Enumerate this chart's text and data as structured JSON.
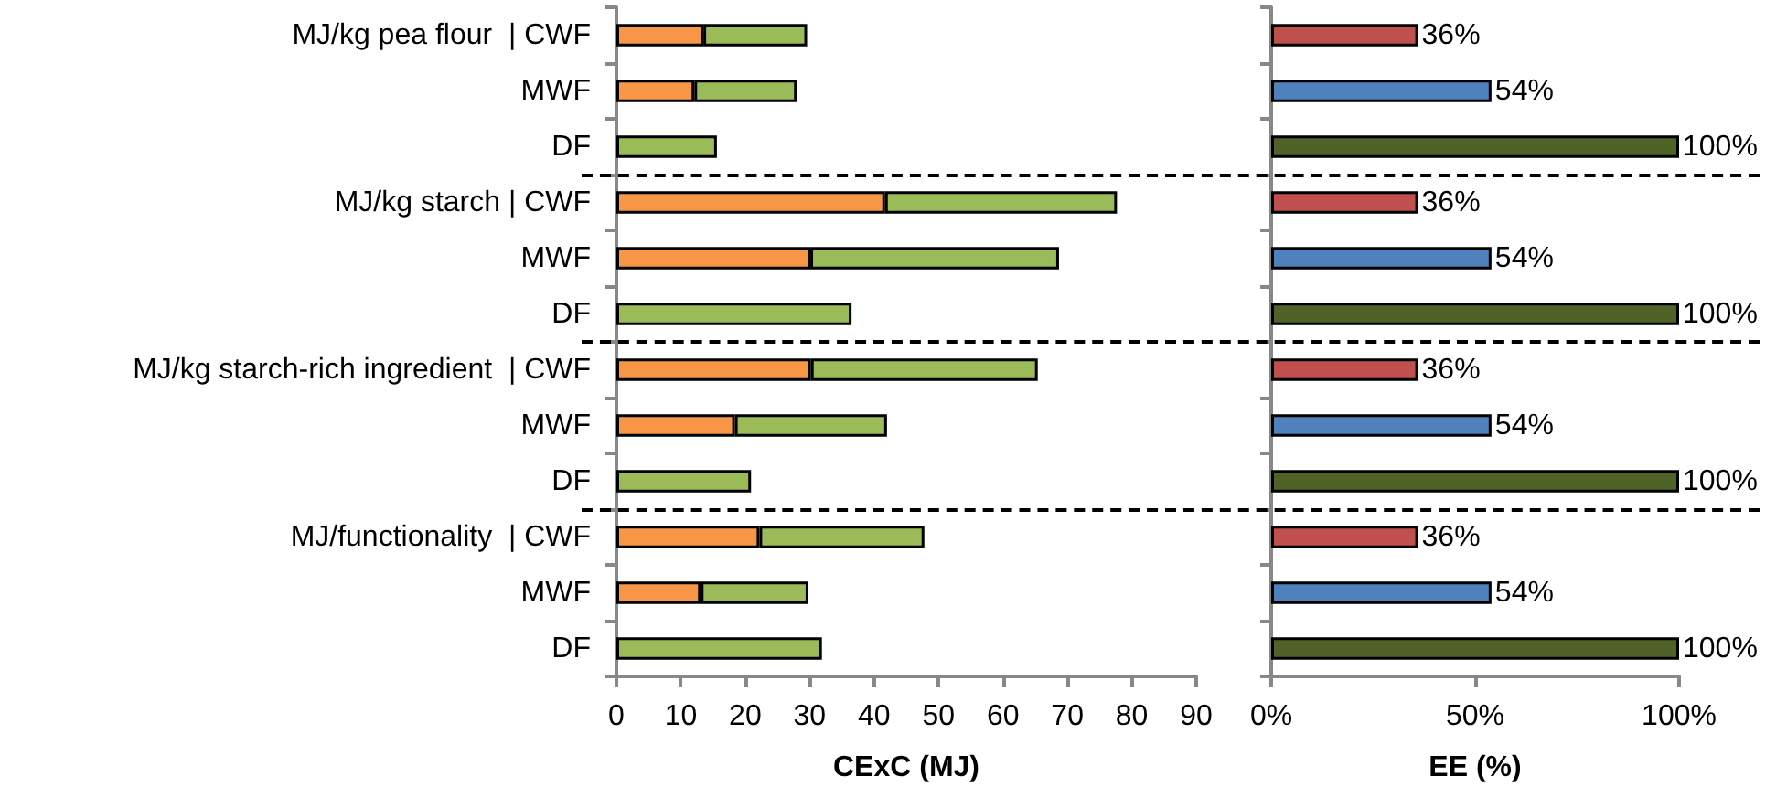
{
  "chart_data": [
    {
      "type": "bar",
      "orientation": "horizontal",
      "stacked": true,
      "categories": [
        "MJ/kg pea flour  | CWF",
        "MWF",
        "DF",
        "MJ/kg starch | CWF",
        "MWF",
        "DF",
        "MJ/kg starch-rich ingredient  | CWF",
        "MWF",
        "DF",
        "MJ/functionality  | CWF",
        "MWF",
        "DF"
      ],
      "series": [
        {
          "color": "#f79646",
          "values": [
            13.5,
            12.1,
            null,
            41.7,
            30.1,
            null,
            30.2,
            18.4,
            null,
            22.2,
            13.1,
            null
          ]
        },
        {
          "color": "#9bbb59",
          "values": [
            16.1,
            15.9,
            15.6,
            36.0,
            38.6,
            36.5,
            35.2,
            23.6,
            20.9,
            25.6,
            16.7,
            31.9
          ]
        }
      ],
      "xlim": [
        0,
        90
      ],
      "xticks": [
        0,
        10,
        20,
        30,
        40,
        50,
        60,
        70,
        80,
        90
      ],
      "xlabel": "CExC (MJ)"
    },
    {
      "type": "bar",
      "orientation": "horizontal",
      "categories": [
        null,
        null,
        null,
        null,
        null,
        null,
        null,
        null,
        null,
        null,
        null,
        null
      ],
      "values": [
        36,
        54,
        100,
        36,
        54,
        100,
        36,
        54,
        100,
        36,
        54,
        100
      ],
      "colors": [
        "#c0504d",
        "#4f81bd",
        "#4f6228",
        "#c0504d",
        "#4f81bd",
        "#4f6228",
        "#c0504d",
        "#4f81bd",
        "#4f6228",
        "#c0504d",
        "#4f81bd",
        "#4f6228"
      ],
      "value_labels": [
        "36%",
        "54%",
        "100%",
        "36%",
        "54%",
        "100%",
        "36%",
        "54%",
        "100%",
        "36%",
        "54%",
        "100%"
      ],
      "xlim": [
        0,
        100
      ],
      "xticks": [
        {
          "value": 0,
          "label": "0%"
        },
        {
          "value": 50,
          "label": "50%"
        },
        {
          "value": 100,
          "label": "100%"
        }
      ],
      "xlabel": "EE (%)",
      "tick_labels": "x"
    }
  ]
}
